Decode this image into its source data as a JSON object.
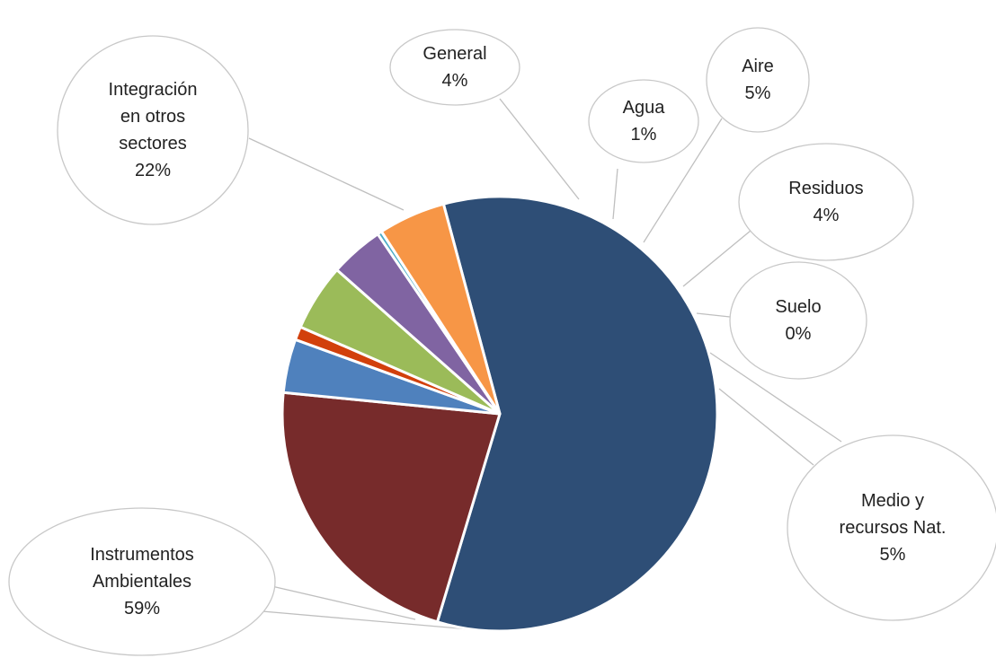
{
  "chart_data": {
    "type": "pie",
    "title": "",
    "legend": "none",
    "slices": [
      {
        "label": "Instrumentos Ambientales",
        "label_lines": [
          "Instrumentos",
          "Ambientales"
        ],
        "value": 59,
        "value_label": "59%",
        "color": "#2e4e76"
      },
      {
        "label": "Integración en otros sectores",
        "label_lines": [
          "Integración",
          "en otros",
          "sectores"
        ],
        "value": 22,
        "value_label": "22%",
        "color": "#772b2b"
      },
      {
        "label": "General",
        "label_lines": [
          "General"
        ],
        "value": 4,
        "value_label": "4%",
        "color": "#4f81bd"
      },
      {
        "label": "Agua",
        "label_lines": [
          "Agua"
        ],
        "value": 1,
        "value_label": "1%",
        "color": "#d2400c"
      },
      {
        "label": "Aire",
        "label_lines": [
          "Aire"
        ],
        "value": 5,
        "value_label": "5%",
        "color": "#9bbb59"
      },
      {
        "label": "Residuos",
        "label_lines": [
          "Residuos"
        ],
        "value": 4,
        "value_label": "4%",
        "color": "#8064a2"
      },
      {
        "label": "Suelo",
        "label_lines": [
          "Suelo"
        ],
        "value": 0,
        "value_label": "0%",
        "color": "#4bacc6"
      },
      {
        "label": "Medio y recursos Nat.",
        "label_lines": [
          "Medio y",
          "recursos Nat."
        ],
        "value": 5,
        "value_label": "5%",
        "color": "#f79646"
      }
    ]
  }
}
